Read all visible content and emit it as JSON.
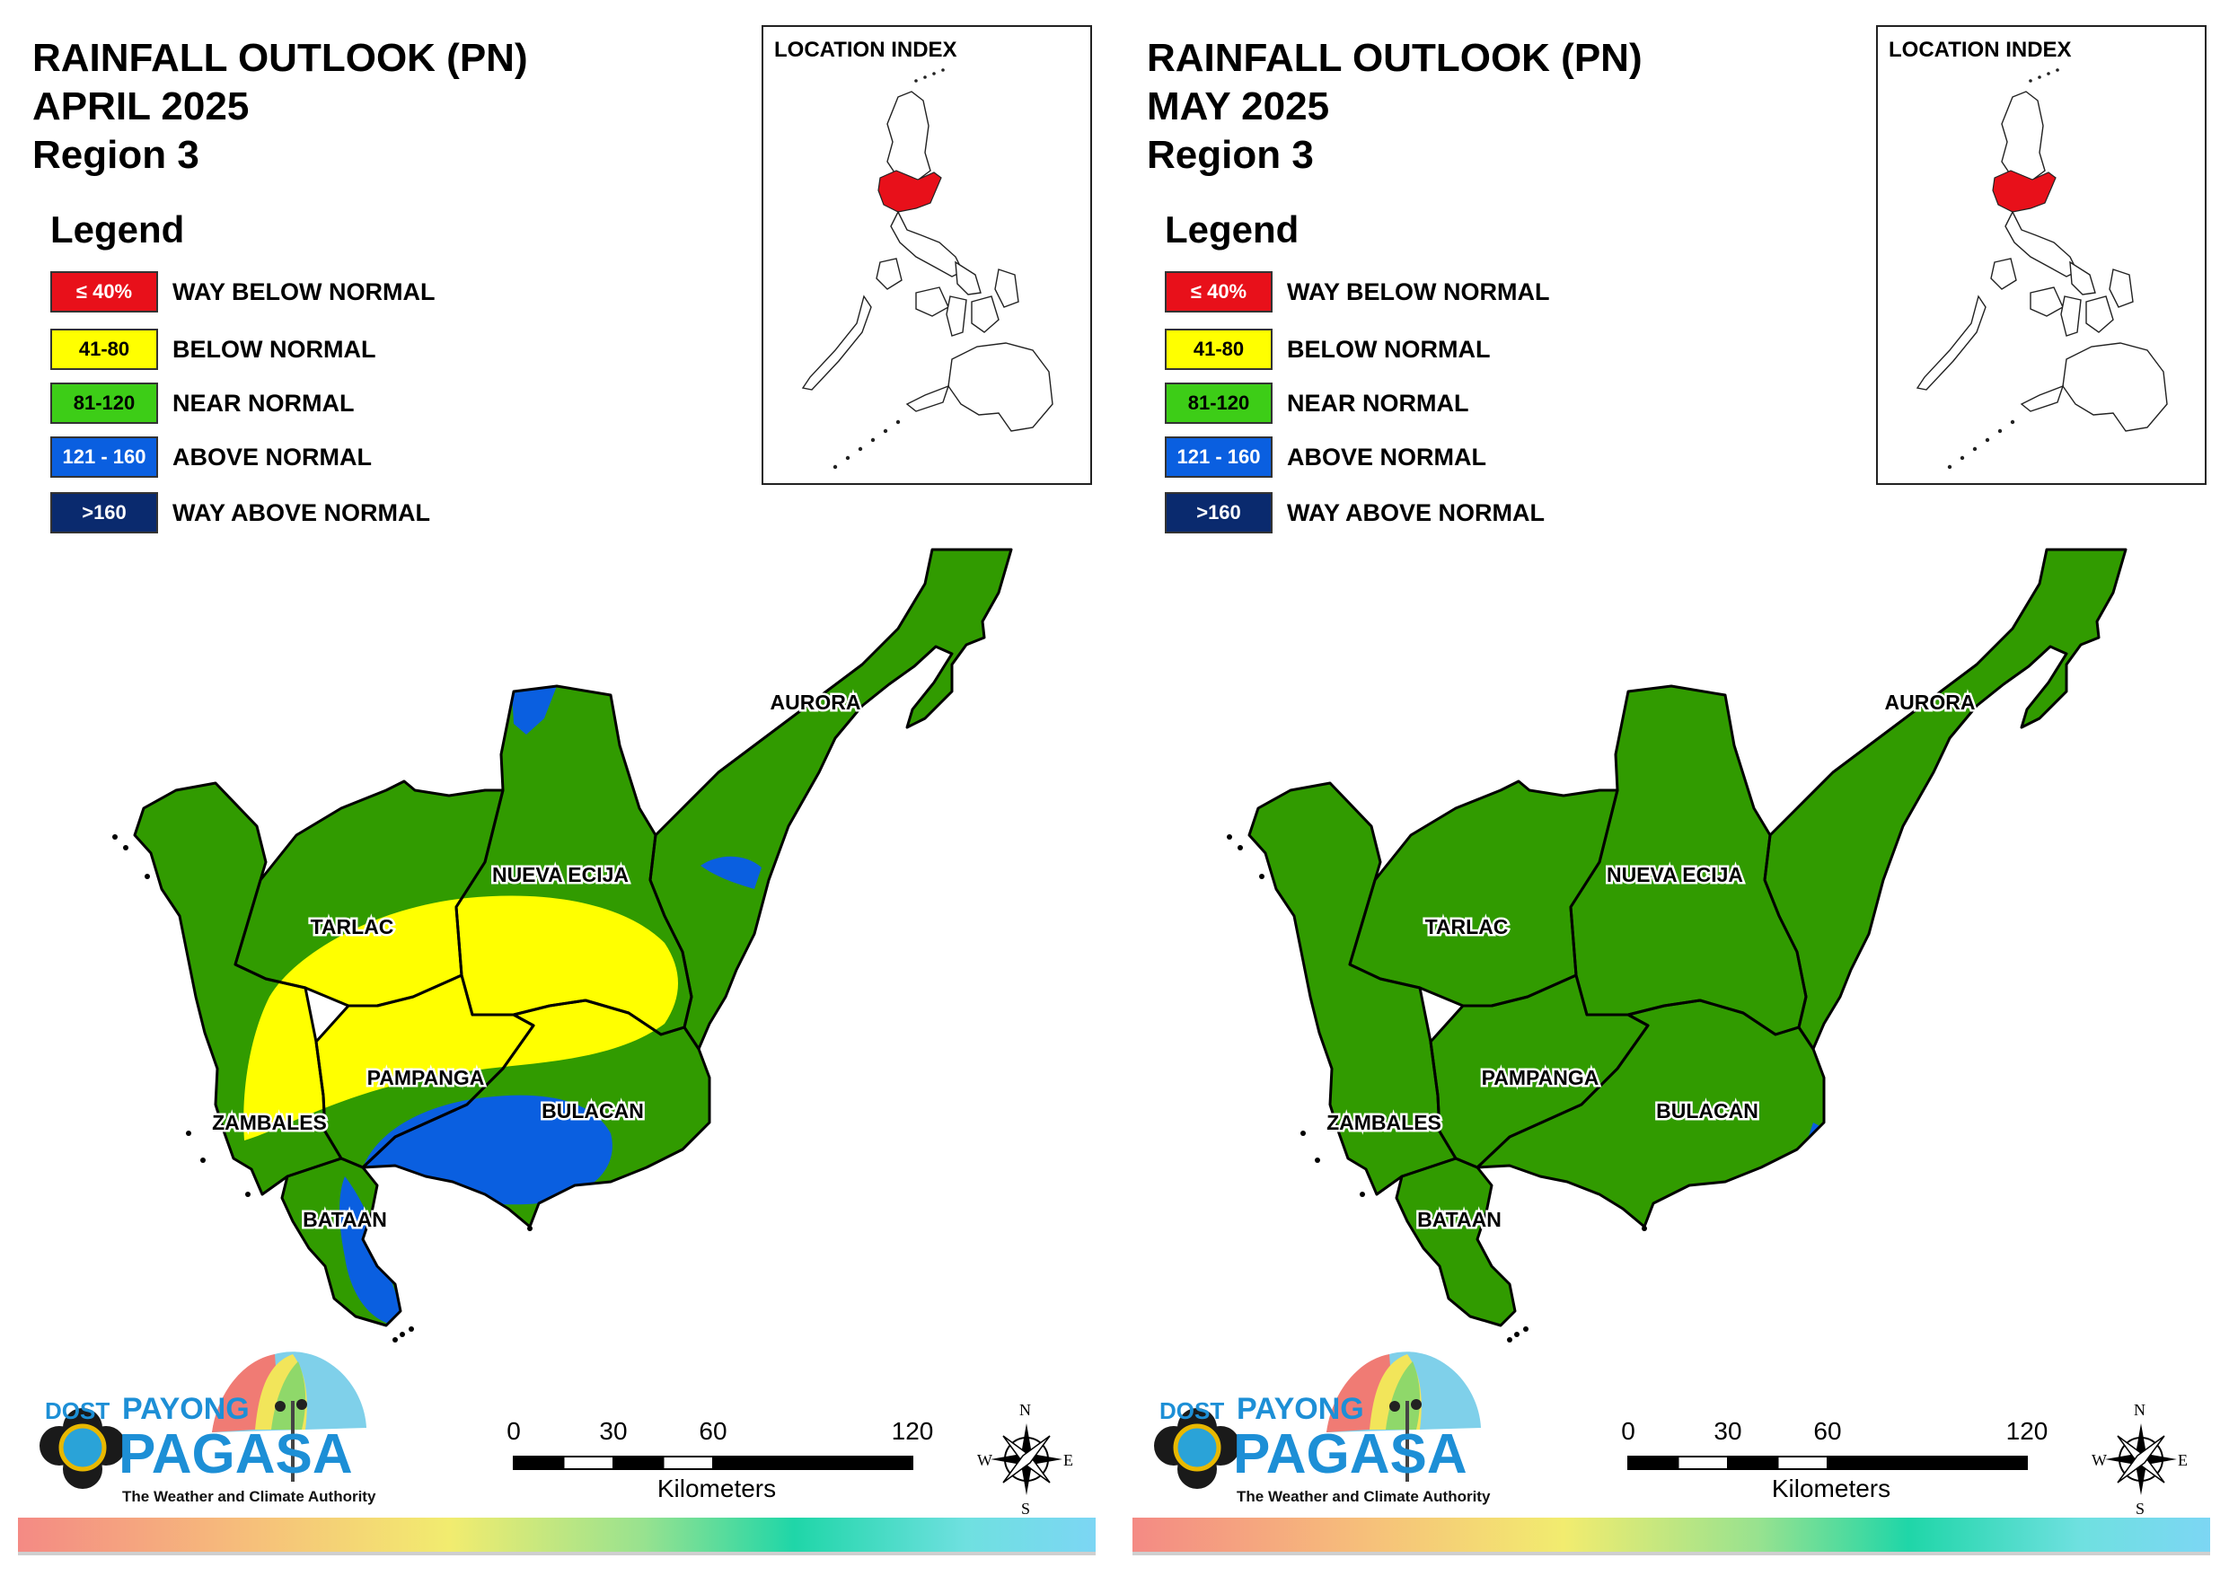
{
  "panels": [
    {
      "title": "RAINFALL OUTLOOK (PN)",
      "month": "APRIL 2025",
      "region": "Region 3",
      "provinces": [
        "AURORA",
        "NUEVA ECIJA",
        "TARLAC",
        "PAMPANGA",
        "BULACAN",
        "ZAMBALES",
        "BATAAN"
      ],
      "map_shading": "mixed: below normal (yellow) across central plain, above normal (blue) over southern Pampanga, Bulacan and Bataan coast, near normal (green) elsewhere"
    },
    {
      "title": "RAINFALL OUTLOOK (PN)",
      "month": "MAY 2025",
      "region": "Region 3",
      "provinces": [
        "AURORA",
        "NUEVA ECIJA",
        "TARLAC",
        "PAMPANGA",
        "BULACAN",
        "ZAMBALES",
        "BATAAN"
      ],
      "map_shading": "near normal (green) region-wide, small above normal patch on eastern Bulacan"
    }
  ],
  "legend": {
    "heading": "Legend",
    "items": [
      {
        "range": "≤ 40%",
        "label": "WAY BELOW NORMAL",
        "color": "#e8101a",
        "text_color": "#ffffff"
      },
      {
        "range": "41-80",
        "label": "BELOW NORMAL",
        "color": "#ffff00",
        "text_color": "#000000"
      },
      {
        "range": "81-120",
        "label": "NEAR NORMAL",
        "color": "#3dcd17",
        "text_color": "#000000"
      },
      {
        "range": "121 - 160",
        "label": "ABOVE NORMAL",
        "color": "#0a5fe0",
        "text_color": "#ffffff"
      },
      {
        "range": ">160",
        "label": "WAY ABOVE NORMAL",
        "color": "#0a2a6e",
        "text_color": "#ffffff"
      }
    ]
  },
  "location_index": {
    "title": "LOCATION INDEX",
    "highlight_color": "#e8101a"
  },
  "logo": {
    "top_label": "DOST",
    "brand_top": "PAYONG",
    "brand_main": "PAGASA",
    "tagline": "The Weather and Climate Authority"
  },
  "scale": {
    "ticks": [
      "0",
      "30",
      "60",
      "120"
    ],
    "unit": "Kilometers"
  },
  "compass": {
    "n": "N",
    "e": "E",
    "s": "S",
    "w": "W"
  },
  "colors": {
    "map_green": "#319b00",
    "outline": "#000000"
  }
}
